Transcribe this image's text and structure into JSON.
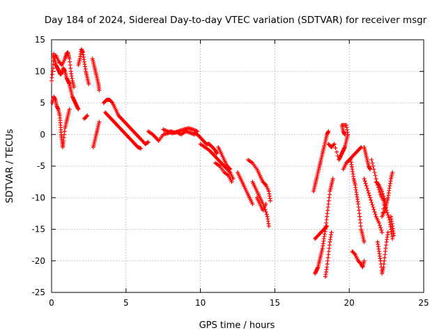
{
  "chart_data": {
    "type": "scatter",
    "title": "Day 184 of 2024, Sidereal Day-to-day VTEC variation (SDTVAR) for receiver msgr",
    "xlabel": "GPS time / hours",
    "ylabel": "SDTVAR / TECUs",
    "xlim": [
      0,
      25
    ],
    "ylim": [
      -25,
      15
    ],
    "xticks": [
      0,
      5,
      10,
      15,
      20,
      25
    ],
    "yticks": [
      -25,
      -20,
      -15,
      -10,
      -5,
      0,
      5,
      10,
      15
    ],
    "xtick_labels": [
      "0",
      "5",
      "10",
      "15",
      "20",
      "25"
    ],
    "ytick_labels": [
      "-25",
      "-20",
      "-15",
      "-10",
      "-5",
      "0",
      "5",
      "10",
      "15"
    ],
    "grid": true,
    "marker": "plus",
    "color": "#ff0000",
    "series": [
      {
        "values": [
          [
            0.0,
            8.5
          ],
          [
            0.1,
            10.5
          ],
          [
            0.15,
            12.8
          ],
          [
            0.2,
            12.0
          ],
          [
            0.3,
            11.0
          ],
          [
            0.4,
            10.5
          ],
          [
            0.5,
            10.0
          ],
          [
            0.6,
            9.5
          ],
          [
            0.7,
            9.8
          ],
          [
            0.8,
            10.5
          ],
          [
            0.9,
            10.0
          ],
          [
            1.0,
            9.0
          ],
          [
            1.1,
            8.5
          ],
          [
            1.2,
            8.0
          ],
          [
            1.3,
            7.0
          ],
          [
            1.4,
            6.0
          ],
          [
            1.5,
            5.5
          ],
          [
            1.6,
            5.0
          ],
          [
            1.7,
            4.5
          ],
          [
            1.8,
            4.0
          ],
          [
            0.05,
            5.0
          ],
          [
            0.15,
            6.0
          ],
          [
            0.25,
            5.5
          ],
          [
            0.35,
            4.5
          ],
          [
            0.45,
            4.0
          ],
          [
            0.55,
            3.0
          ],
          [
            0.6,
            1.5
          ],
          [
            0.65,
            0.0
          ],
          [
            0.7,
            -1.0
          ],
          [
            0.75,
            -2.0
          ],
          [
            0.8,
            -1.0
          ],
          [
            0.9,
            1.0
          ],
          [
            1.0,
            2.0
          ],
          [
            1.1,
            3.0
          ],
          [
            1.2,
            4.0
          ],
          [
            0.3,
            12.5
          ],
          [
            0.5,
            11.5
          ],
          [
            0.7,
            11.0
          ],
          [
            0.9,
            12.0
          ],
          [
            1.0,
            12.8
          ],
          [
            1.1,
            13.0
          ],
          [
            1.2,
            12.0
          ],
          [
            1.3,
            10.0
          ],
          [
            1.4,
            8.5
          ],
          [
            1.5,
            7.5
          ],
          [
            1.8,
            11.0
          ],
          [
            1.9,
            12.0
          ],
          [
            2.0,
            13.5
          ],
          [
            2.1,
            13.0
          ],
          [
            2.2,
            11.5
          ],
          [
            2.3,
            10.0
          ],
          [
            2.4,
            9.0
          ],
          [
            2.5,
            8.0
          ],
          [
            2.2,
            2.5
          ],
          [
            2.4,
            3.0
          ],
          [
            2.75,
            12.0
          ],
          [
            2.85,
            11.0
          ],
          [
            2.95,
            10.0
          ],
          [
            3.05,
            9.0
          ],
          [
            3.15,
            8.0
          ],
          [
            3.2,
            7.0
          ],
          [
            2.8,
            -2.0
          ],
          [
            2.9,
            -1.0
          ],
          [
            3.0,
            0.0
          ],
          [
            3.1,
            1.0
          ],
          [
            3.2,
            2.0
          ],
          [
            3.5,
            5.0
          ],
          [
            3.7,
            5.5
          ],
          [
            3.9,
            5.5
          ],
          [
            4.1,
            5.0
          ],
          [
            4.3,
            4.0
          ],
          [
            4.5,
            3.0
          ],
          [
            4.7,
            2.5
          ],
          [
            4.9,
            2.0
          ],
          [
            5.1,
            1.5
          ],
          [
            5.3,
            1.0
          ],
          [
            5.5,
            0.5
          ],
          [
            5.7,
            0.0
          ],
          [
            5.9,
            -0.5
          ],
          [
            6.1,
            -1.0
          ],
          [
            6.3,
            -1.5
          ],
          [
            6.5,
            -1.2
          ],
          [
            3.6,
            3.5
          ],
          [
            3.8,
            3.0
          ],
          [
            4.0,
            2.5
          ],
          [
            4.2,
            2.0
          ],
          [
            4.4,
            1.5
          ],
          [
            4.6,
            1.0
          ],
          [
            4.8,
            0.5
          ],
          [
            5.0,
            0.0
          ],
          [
            5.2,
            -0.5
          ],
          [
            5.4,
            -1.0
          ],
          [
            5.6,
            -1.5
          ],
          [
            5.8,
            -2.0
          ],
          [
            6.0,
            -2.2
          ],
          [
            6.5,
            0.5
          ],
          [
            6.8,
            0.0
          ],
          [
            7.0,
            -0.5
          ],
          [
            7.2,
            -1.0
          ],
          [
            7.5,
            0.0
          ],
          [
            7.8,
            0.2
          ],
          [
            8.0,
            0.5
          ],
          [
            8.3,
            0.3
          ],
          [
            8.6,
            0.6
          ],
          [
            8.9,
            0.8
          ],
          [
            9.2,
            1.0
          ],
          [
            9.5,
            0.8
          ],
          [
            9.8,
            0.5
          ],
          [
            7.5,
            0.8
          ],
          [
            7.8,
            0.5
          ],
          [
            8.1,
            0.2
          ],
          [
            8.4,
            0.4
          ],
          [
            8.7,
            0.0
          ],
          [
            9.0,
            0.5
          ],
          [
            9.3,
            0.3
          ],
          [
            9.6,
            0.0
          ],
          [
            9.6,
            0.3
          ],
          [
            9.8,
            0.0
          ],
          [
            10.0,
            -0.5
          ],
          [
            10.2,
            -1.0
          ],
          [
            10.4,
            -1.5
          ],
          [
            10.6,
            -1.5
          ],
          [
            10.8,
            -2.0
          ],
          [
            11.0,
            -2.5
          ],
          [
            11.1,
            -3.0
          ],
          [
            10.0,
            -1.5
          ],
          [
            10.3,
            -2.0
          ],
          [
            10.6,
            -2.5
          ],
          [
            10.8,
            -3.0
          ],
          [
            11.0,
            -3.5
          ],
          [
            11.2,
            -4.0
          ],
          [
            11.4,
            -4.5
          ],
          [
            11.6,
            -5.0
          ],
          [
            11.8,
            -5.5
          ],
          [
            12.0,
            -6.0
          ],
          [
            12.2,
            -7.0
          ],
          [
            11.0,
            -4.5
          ],
          [
            11.3,
            -5.0
          ],
          [
            11.6,
            -6.0
          ],
          [
            11.9,
            -6.5
          ],
          [
            12.1,
            -7.5
          ],
          [
            11.2,
            -2.0
          ],
          [
            11.4,
            -3.0
          ],
          [
            11.6,
            -4.0
          ],
          [
            11.8,
            -5.0
          ],
          [
            12.0,
            -5.5
          ],
          [
            12.5,
            -6.0
          ],
          [
            12.7,
            -7.0
          ],
          [
            12.9,
            -8.0
          ],
          [
            13.1,
            -9.0
          ],
          [
            13.3,
            -10.0
          ],
          [
            13.5,
            -11.0
          ],
          [
            13.2,
            -4.0
          ],
          [
            13.5,
            -4.5
          ],
          [
            13.8,
            -5.5
          ],
          [
            14.0,
            -6.5
          ],
          [
            14.2,
            -7.5
          ],
          [
            14.4,
            -8.0
          ],
          [
            14.6,
            -9.0
          ],
          [
            14.7,
            -10.5
          ],
          [
            13.5,
            -7.5
          ],
          [
            13.7,
            -8.5
          ],
          [
            13.9,
            -9.5
          ],
          [
            14.1,
            -10.5
          ],
          [
            14.3,
            -11.5
          ],
          [
            14.5,
            -13.0
          ],
          [
            14.6,
            -14.5
          ],
          [
            13.8,
            -10.0
          ],
          [
            14.0,
            -11.0
          ],
          [
            14.2,
            -12.0
          ],
          [
            14.4,
            -11.0
          ],
          [
            17.6,
            -9.0
          ],
          [
            17.7,
            -8.0
          ],
          [
            17.8,
            -7.0
          ],
          [
            17.9,
            -6.0
          ],
          [
            18.0,
            -5.0
          ],
          [
            18.1,
            -4.0
          ],
          [
            18.2,
            -3.0
          ],
          [
            18.3,
            -2.0
          ],
          [
            18.4,
            -1.0
          ],
          [
            18.5,
            0.0
          ],
          [
            18.6,
            0.5
          ],
          [
            17.7,
            -16.5
          ],
          [
            17.9,
            -16.0
          ],
          [
            18.1,
            -15.5
          ],
          [
            18.3,
            -15.0
          ],
          [
            18.5,
            -14.5
          ],
          [
            17.7,
            -22.0
          ],
          [
            17.8,
            -21.5
          ],
          [
            17.9,
            -21.0
          ],
          [
            18.0,
            -20.0
          ],
          [
            18.1,
            -19.0
          ],
          [
            18.2,
            -18.0
          ],
          [
            18.3,
            -16.5
          ],
          [
            18.4,
            -15.0
          ],
          [
            18.5,
            -13.0
          ],
          [
            18.6,
            -11.0
          ],
          [
            18.7,
            -9.0
          ],
          [
            18.8,
            -8.0
          ],
          [
            18.9,
            -7.0
          ],
          [
            18.4,
            -22.5
          ],
          [
            18.5,
            -21.0
          ],
          [
            18.6,
            -19.0
          ],
          [
            18.7,
            -17.0
          ],
          [
            18.8,
            -15.5
          ],
          [
            18.6,
            -1.5
          ],
          [
            18.8,
            -2.0
          ],
          [
            19.0,
            -1.5
          ],
          [
            19.3,
            -4.0
          ],
          [
            19.4,
            -3.5
          ],
          [
            19.5,
            -3.0
          ],
          [
            19.6,
            -2.5
          ],
          [
            19.7,
            -2.0
          ],
          [
            19.8,
            -1.0
          ],
          [
            19.9,
            0.0
          ],
          [
            19.8,
            1.5
          ],
          [
            19.5,
            1.5
          ],
          [
            19.6,
            0.5
          ],
          [
            19.7,
            0.0
          ],
          [
            19.6,
            -5.5
          ],
          [
            19.8,
            -4.5
          ],
          [
            20.0,
            -4.0
          ],
          [
            20.2,
            -3.5
          ],
          [
            20.4,
            -3.0
          ],
          [
            20.6,
            -2.5
          ],
          [
            20.8,
            -2.0
          ],
          [
            20.1,
            -4.0
          ],
          [
            20.2,
            -5.5
          ],
          [
            20.3,
            -7.0
          ],
          [
            20.4,
            -8.0
          ],
          [
            20.5,
            -9.5
          ],
          [
            20.6,
            -11.0
          ],
          [
            20.7,
            -13.0
          ],
          [
            20.8,
            -15.0
          ],
          [
            20.9,
            -16.0
          ],
          [
            21.0,
            -17.0
          ],
          [
            20.2,
            -18.5
          ],
          [
            20.4,
            -19.0
          ],
          [
            20.6,
            -20.0
          ],
          [
            20.8,
            -20.5
          ],
          [
            20.9,
            -21.0
          ],
          [
            21.0,
            -20.0
          ],
          [
            21.0,
            -2.0
          ],
          [
            21.1,
            -3.0
          ],
          [
            21.2,
            -4.0
          ],
          [
            21.3,
            -5.0
          ],
          [
            21.4,
            -5.5
          ],
          [
            21.0,
            -7.0
          ],
          [
            21.2,
            -8.5
          ],
          [
            21.4,
            -10.0
          ],
          [
            21.6,
            -11.5
          ],
          [
            21.8,
            -13.0
          ],
          [
            22.0,
            -14.0
          ],
          [
            22.2,
            -15.5
          ],
          [
            21.5,
            -4.0
          ],
          [
            21.7,
            -6.0
          ],
          [
            21.9,
            -8.0
          ],
          [
            22.1,
            -9.5
          ],
          [
            22.3,
            -10.5
          ],
          [
            22.5,
            -12.0
          ],
          [
            22.7,
            -13.5
          ],
          [
            22.8,
            -15.0
          ],
          [
            22.9,
            -16.5
          ],
          [
            21.9,
            -17.0
          ],
          [
            22.0,
            -18.5
          ],
          [
            22.1,
            -20.0
          ],
          [
            22.2,
            -22.0
          ],
          [
            22.3,
            -21.0
          ],
          [
            22.4,
            -19.0
          ],
          [
            22.5,
            -17.0
          ],
          [
            22.6,
            -15.5
          ],
          [
            21.8,
            -7.5
          ],
          [
            22.0,
            -8.0
          ],
          [
            22.2,
            -9.0
          ],
          [
            22.4,
            -10.5
          ],
          [
            22.2,
            -13.0
          ],
          [
            22.4,
            -12.0
          ],
          [
            22.5,
            -11.0
          ],
          [
            22.6,
            -10.0
          ],
          [
            22.7,
            -8.5
          ],
          [
            22.8,
            -7.0
          ],
          [
            22.9,
            -6.0
          ],
          [
            22.8,
            -13.0
          ],
          [
            22.9,
            -14.5
          ],
          [
            23.0,
            -16.0
          ]
        ]
      }
    ]
  }
}
